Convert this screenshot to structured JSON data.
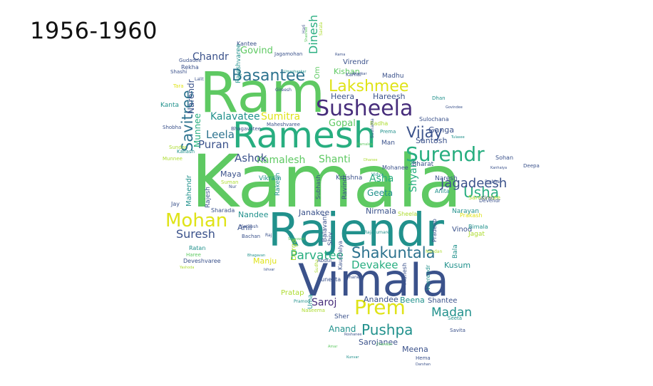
{
  "title": "1956-1960",
  "palette": {
    "deep_purple": "#472d7b",
    "indigo": "#3b528b",
    "blue": "#2c728e",
    "teal": "#21918c",
    "green_teal": "#28ae80",
    "green": "#5ec962",
    "lime": "#addc30",
    "yellow": "#dfe318"
  },
  "words": [
    {
      "text": "Kamala",
      "color": "green"
    },
    {
      "text": "Ram",
      "color": "green"
    },
    {
      "text": "Vimala",
      "color": "indigo"
    },
    {
      "text": "Rajendr",
      "color": "teal"
    },
    {
      "text": "Ramesh",
      "color": "green_teal"
    },
    {
      "text": "Susheela",
      "color": "deep_purple"
    },
    {
      "text": "Basantee",
      "color": "blue"
    },
    {
      "text": "Lakshmee",
      "color": "yellow"
    },
    {
      "text": "Surendr",
      "color": "green_teal"
    },
    {
      "text": "Mohan",
      "color": "yellow"
    },
    {
      "text": "Shakuntala",
      "color": "blue"
    },
    {
      "text": "Prem",
      "color": "yellow"
    },
    {
      "text": "Pushpa",
      "color": "teal"
    },
    {
      "text": "Savitree",
      "color": "blue"
    },
    {
      "text": "Vijay",
      "color": "indigo"
    },
    {
      "text": "Usha",
      "color": "green_teal"
    },
    {
      "text": "Jagadeesh",
      "color": "indigo"
    },
    {
      "text": "Parvatee",
      "color": "green_teal"
    },
    {
      "text": "Madan",
      "color": "teal"
    },
    {
      "text": "Devakee",
      "color": "green_teal"
    },
    {
      "text": "Suresh",
      "color": "indigo"
    },
    {
      "text": "Kamalesh",
      "color": "green"
    },
    {
      "text": "Shanti",
      "color": "green"
    },
    {
      "text": "Sumitra",
      "color": "yellow"
    },
    {
      "text": "Leela",
      "color": "blue"
    },
    {
      "text": "Puran",
      "color": "indigo"
    },
    {
      "text": "Ashok",
      "color": "indigo"
    },
    {
      "text": "Kalavatee",
      "color": "teal"
    },
    {
      "text": "Chandr",
      "color": "indigo"
    },
    {
      "text": "Govind",
      "color": "green"
    },
    {
      "text": "Dinesh",
      "color": "green_teal"
    },
    {
      "text": "Narendr",
      "color": "indigo"
    },
    {
      "text": "Munnee",
      "color": "green_teal"
    },
    {
      "text": "Gopal",
      "color": "green"
    },
    {
      "text": "Shyam",
      "color": "green_teal"
    },
    {
      "text": "Asha",
      "color": "green_teal"
    },
    {
      "text": "Geeta",
      "color": "teal"
    },
    {
      "text": "Saroj",
      "color": "deep_purple"
    },
    {
      "text": "Anand",
      "color": "teal"
    },
    {
      "text": "Sarojanee",
      "color": "indigo"
    },
    {
      "text": "Meena",
      "color": "indigo"
    },
    {
      "text": "Kusum",
      "color": "teal"
    },
    {
      "text": "Beena",
      "color": "teal"
    },
    {
      "text": "Anandee",
      "color": "indigo"
    },
    {
      "text": "Shantee",
      "color": "indigo"
    },
    {
      "text": "Nirmala",
      "color": "indigo"
    },
    {
      "text": "Janakee",
      "color": "indigo"
    },
    {
      "text": "Heera",
      "color": "indigo"
    },
    {
      "text": "Hareesh",
      "color": "indigo"
    },
    {
      "text": "Ganga",
      "color": "indigo"
    },
    {
      "text": "Santosh",
      "color": "indigo"
    },
    {
      "text": "Maya",
      "color": "indigo"
    },
    {
      "text": "Anil",
      "color": "indigo"
    },
    {
      "text": "Nandee",
      "color": "teal"
    },
    {
      "text": "Manju",
      "color": "yellow"
    },
    {
      "text": "Kishan",
      "color": "green"
    },
    {
      "text": "Madhu",
      "color": "indigo"
    },
    {
      "text": "Kantee",
      "color": "indigo"
    },
    {
      "text": "Rekha",
      "color": "indigo"
    },
    {
      "text": "Kanta",
      "color": "teal"
    },
    {
      "text": "Shobha",
      "color": "indigo"
    },
    {
      "text": "Jay",
      "color": "indigo"
    },
    {
      "text": "Ratan",
      "color": "teal"
    },
    {
      "text": "Haree",
      "color": "green"
    },
    {
      "text": "Deveshvaree",
      "color": "indigo"
    },
    {
      "text": "Vinod",
      "color": "indigo"
    },
    {
      "text": "Narayan",
      "color": "teal"
    },
    {
      "text": "Bimala",
      "color": "teal"
    },
    {
      "text": "Jagat",
      "color": "lime"
    },
    {
      "text": "Bala",
      "color": "teal"
    },
    {
      "text": "Sohan",
      "color": "indigo"
    },
    {
      "text": "Deepa",
      "color": "indigo"
    },
    {
      "text": "Bharat",
      "color": "indigo"
    },
    {
      "text": "Naresh",
      "color": "indigo"
    },
    {
      "text": "Mohanee",
      "color": "indigo"
    },
    {
      "text": "Vikram",
      "color": "teal"
    },
    {
      "text": "Mahendr",
      "color": "teal"
    },
    {
      "text": "Rajesh",
      "color": "indigo"
    },
    {
      "text": "Sharada",
      "color": "indigo"
    },
    {
      "text": "Rakesh",
      "color": "teal"
    },
    {
      "text": "Durga",
      "color": "lime"
    },
    {
      "text": "Subhash",
      "color": "indigo"
    },
    {
      "text": "Ravindr",
      "color": "indigo"
    },
    {
      "text": "Krrishna",
      "color": "indigo"
    },
    {
      "text": "Sheela",
      "color": "lime"
    },
    {
      "text": "Pradeep",
      "color": "indigo"
    },
    {
      "text": "Veerendr",
      "color": "teal"
    },
    {
      "text": "Mahesh",
      "color": "indigo"
    },
    {
      "text": "Pratap",
      "color": "lime"
    },
    {
      "text": "Suneeta",
      "color": "indigo"
    },
    {
      "text": "Abdul",
      "color": "indigo"
    },
    {
      "text": "Sher",
      "color": "indigo"
    },
    {
      "text": "Kaushalya",
      "color": "indigo"
    },
    {
      "text": "Shiv",
      "color": "indigo"
    },
    {
      "text": "Balavant",
      "color": "indigo"
    },
    {
      "text": "Sulochana",
      "color": "indigo"
    },
    {
      "text": "Sarasvatee",
      "color": "lime"
    },
    {
      "text": "Prakash",
      "color": "yellow"
    },
    {
      "text": "Anita",
      "color": "teal"
    },
    {
      "text": "Kiran",
      "color": "indigo"
    },
    {
      "text": "Devendr",
      "color": "indigo"
    },
    {
      "text": "Dhan",
      "color": "teal"
    },
    {
      "text": "Seeta",
      "color": "teal"
    },
    {
      "text": "Savita",
      "color": "indigo"
    },
    {
      "text": "Hema",
      "color": "indigo"
    },
    {
      "text": "Man",
      "color": "indigo"
    },
    {
      "text": "Virendr",
      "color": "indigo"
    },
    {
      "text": "Om",
      "color": "green"
    },
    {
      "text": "Jagamohan",
      "color": "indigo"
    },
    {
      "text": "Gudadee",
      "color": "indigo"
    },
    {
      "text": "Shashi",
      "color": "indigo"
    },
    {
      "text": "Tara",
      "color": "yellow"
    },
    {
      "text": "Sundar",
      "color": "lime"
    },
    {
      "text": "Munnee",
      "color": "lime"
    },
    {
      "text": "Kailash",
      "color": "teal"
    },
    {
      "text": "Suman",
      "color": "lime"
    },
    {
      "text": "Nur",
      "color": "indigo"
    },
    {
      "text": "Bachan",
      "color": "indigo"
    },
    {
      "text": "Sateesh",
      "color": "indigo"
    },
    {
      "text": "Bhagavatee",
      "color": "indigo"
    },
    {
      "text": "Maheshvaree",
      "color": "indigo"
    },
    {
      "text": "Rajeshvaree",
      "color": "teal"
    },
    {
      "text": "Prema",
      "color": "teal"
    },
    {
      "text": "Radha",
      "color": "lime"
    },
    {
      "text": "Vidya",
      "color": "teal"
    },
    {
      "text": "Sushama",
      "color": "indigo"
    },
    {
      "text": "Pramod",
      "color": "teal"
    },
    {
      "text": "Naseema",
      "color": "lime"
    },
    {
      "text": "Kamal",
      "color": "indigo"
    },
    {
      "text": "Hari",
      "color": "indigo"
    },
    {
      "text": "Darshan",
      "color": "indigo"
    },
    {
      "text": "Uma",
      "color": "teal"
    },
    {
      "text": "Rama",
      "color": "indigo"
    },
    {
      "text": "Amar",
      "color": "green"
    },
    {
      "text": "Roshanee",
      "color": "indigo"
    },
    {
      "text": "Kunvar",
      "color": "teal"
    },
    {
      "text": "Prabha",
      "color": "indigo"
    },
    {
      "text": "Kanhaiya",
      "color": "indigo"
    },
    {
      "text": "Chandan",
      "color": "green"
    },
    {
      "text": "Lalit",
      "color": "indigo"
    },
    {
      "text": "Gireesh",
      "color": "indigo"
    },
    {
      "text": "Govindee",
      "color": "indigo"
    },
    {
      "text": "Bhagavan",
      "color": "teal"
    },
    {
      "text": "Saraswati",
      "color": "green"
    },
    {
      "text": "Yashoda",
      "color": "lime"
    },
    {
      "text": "Sudha",
      "color": "lime"
    },
    {
      "text": "Sohanee",
      "color": "indigo"
    },
    {
      "text": "Raj",
      "color": "indigo"
    },
    {
      "text": "Ishvar",
      "color": "indigo"
    },
    {
      "text": "Rajakumaree",
      "color": "teal"
    },
    {
      "text": "Nandan",
      "color": "lime"
    },
    {
      "text": "Sarala",
      "color": "lime"
    },
    {
      "text": "Shashee",
      "color": "green"
    },
    {
      "text": "Umashankar",
      "color": "teal"
    },
    {
      "text": "Tulasee",
      "color": "teal"
    },
    {
      "text": "Kamalee",
      "color": "green"
    },
    {
      "text": "Dhanee",
      "color": "lime"
    },
    {
      "text": "Shankar",
      "color": "indigo"
    },
    {
      "text": "Vimla",
      "color": "indigo"
    },
    {
      "text": "Sampati",
      "color": "indigo"
    }
  ]
}
